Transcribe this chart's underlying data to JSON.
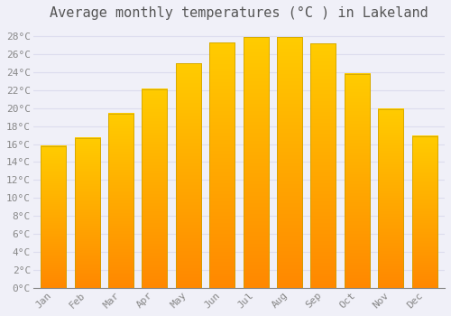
{
  "title": "Average monthly temperatures (°C ) in Lakeland",
  "months": [
    "Jan",
    "Feb",
    "Mar",
    "Apr",
    "May",
    "Jun",
    "Jul",
    "Aug",
    "Sep",
    "Oct",
    "Nov",
    "Dec"
  ],
  "values": [
    15.8,
    16.7,
    19.4,
    22.1,
    25.0,
    27.3,
    27.9,
    27.9,
    27.2,
    23.8,
    19.9,
    16.9
  ],
  "bar_color_top": "#FFCC00",
  "bar_color_bottom": "#FF8800",
  "bar_edge_color": "#C8A000",
  "background_color": "#F0F0F8",
  "grid_color": "#DDDDEE",
  "title_color": "#555555",
  "tick_color": "#888888",
  "ylim": [
    0,
    29
  ],
  "ytick_step": 2,
  "title_fontsize": 11,
  "tick_fontsize": 8,
  "figsize": [
    5.0,
    3.5
  ],
  "dpi": 100
}
